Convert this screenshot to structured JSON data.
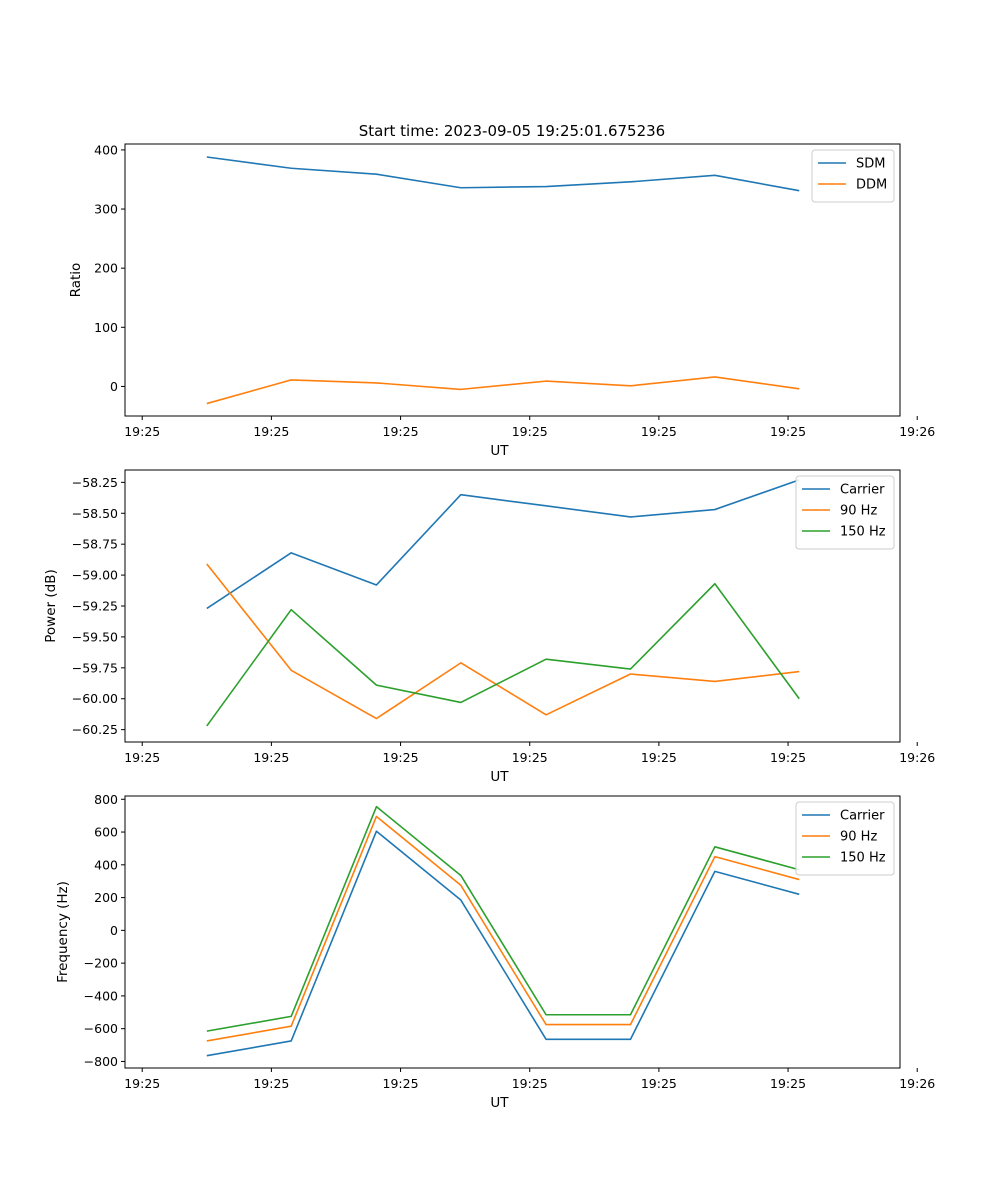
{
  "figure_title": "Start time: 2023-09-05 19:25:01.675236",
  "colors": {
    "blue": "#1f77b4",
    "orange": "#ff7f0e",
    "green": "#2ca02c"
  },
  "chart_data": [
    {
      "type": "line",
      "title": "Start time: 2023-09-05 19:25:01.675236",
      "xlabel": "UT",
      "ylabel": "Ratio",
      "xlim": [
        0,
        9
      ],
      "ylim": [
        -50,
        410
      ],
      "xticks": [
        0.2,
        1.7,
        3.2,
        4.7,
        6.2,
        7.7,
        9.2
      ],
      "xtick_labels": [
        "19:25",
        "19:25",
        "19:25",
        "19:25",
        "19:25",
        "19:25",
        "19:26"
      ],
      "yticks": [
        0,
        100,
        200,
        300,
        400
      ],
      "ytick_labels": [
        "0",
        "100",
        "200",
        "300",
        "400"
      ],
      "legend_position": "top-right",
      "x": [
        0.95,
        1.93,
        2.92,
        3.9,
        4.89,
        5.87,
        6.85,
        7.83
      ],
      "series": [
        {
          "name": "SDM",
          "color": "#1f77b4",
          "values": [
            388,
            369,
            359,
            336,
            338,
            346,
            357,
            331
          ]
        },
        {
          "name": "DDM",
          "color": "#ff7f0e",
          "values": [
            -29,
            11,
            6,
            -5,
            9,
            1,
            16,
            -4
          ]
        }
      ]
    },
    {
      "type": "line",
      "title": "",
      "xlabel": "UT",
      "ylabel": "Power (dB)",
      "xlim": [
        0,
        9
      ],
      "ylim": [
        -60.35,
        -58.15
      ],
      "xticks": [
        0.2,
        1.7,
        3.2,
        4.7,
        6.2,
        7.7,
        9.2
      ],
      "xtick_labels": [
        "19:25",
        "19:25",
        "19:25",
        "19:25",
        "19:25",
        "19:25",
        "19:26"
      ],
      "yticks": [
        -60.25,
        -60.0,
        -59.75,
        -59.5,
        -59.25,
        -59.0,
        -58.75,
        -58.5,
        -58.25
      ],
      "ytick_labels": [
        "−60.25",
        "−60.00",
        "−59.75",
        "−59.50",
        "−59.25",
        "−59.00",
        "−58.75",
        "−58.50",
        "−58.25"
      ],
      "legend_position": "top-right",
      "x": [
        0.95,
        1.93,
        2.92,
        3.9,
        4.89,
        5.87,
        6.85,
        7.83
      ],
      "series": [
        {
          "name": "Carrier",
          "color": "#1f77b4",
          "values": [
            -59.27,
            -58.82,
            -59.08,
            -58.35,
            -58.44,
            -58.53,
            -58.47,
            -58.23
          ]
        },
        {
          "name": "90 Hz",
          "color": "#ff7f0e",
          "values": [
            -58.91,
            -59.77,
            -60.16,
            -59.71,
            -60.13,
            -59.8,
            -59.86,
            -59.78
          ]
        },
        {
          "name": "150 Hz",
          "color": "#2ca02c",
          "values": [
            -60.22,
            -59.28,
            -59.89,
            -60.03,
            -59.68,
            -59.76,
            -59.07,
            -60.0
          ]
        }
      ]
    },
    {
      "type": "line",
      "title": "",
      "xlabel": "UT",
      "ylabel": "Frequency (Hz)",
      "xlim": [
        0,
        9
      ],
      "ylim": [
        -840,
        820
      ],
      "xticks": [
        0.2,
        1.7,
        3.2,
        4.7,
        6.2,
        7.7,
        9.2
      ],
      "xtick_labels": [
        "19:25",
        "19:25",
        "19:25",
        "19:25",
        "19:25",
        "19:25",
        "19:26"
      ],
      "yticks": [
        -800,
        -600,
        -400,
        -200,
        0,
        200,
        400,
        600,
        800
      ],
      "ytick_labels": [
        "−800",
        "−600",
        "−400",
        "−200",
        "0",
        "200",
        "400",
        "600",
        "800"
      ],
      "legend_position": "top-right",
      "x": [
        0.95,
        1.93,
        2.92,
        3.9,
        4.89,
        5.87,
        6.85,
        7.83
      ],
      "series": [
        {
          "name": "Carrier",
          "color": "#1f77b4",
          "values": [
            -765,
            -675,
            605,
            185,
            -665,
            -665,
            360,
            220
          ]
        },
        {
          "name": "90 Hz",
          "color": "#ff7f0e",
          "values": [
            -675,
            -585,
            695,
            275,
            -575,
            -575,
            450,
            310
          ]
        },
        {
          "name": "150 Hz",
          "color": "#2ca02c",
          "values": [
            -615,
            -525,
            755,
            335,
            -515,
            -515,
            510,
            370
          ]
        }
      ]
    }
  ]
}
